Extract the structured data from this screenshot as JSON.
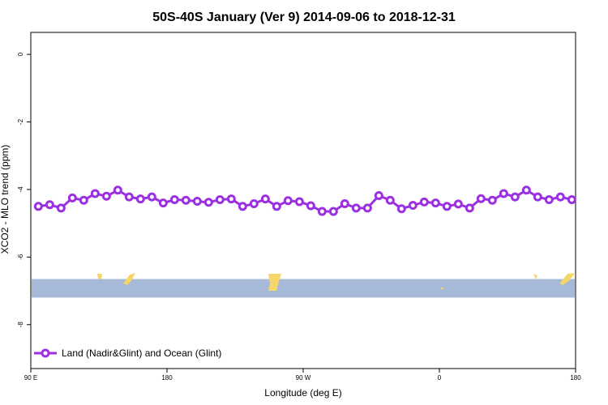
{
  "chart_data": {
    "type": "line",
    "title": "50S-40S January (Ver 9)   2014-09-06 to 2018-12-31",
    "xlabel": "Longitude (deg E)",
    "ylabel": "XCO2 - MLO trend (ppm)",
    "xlim": [
      90,
      450
    ],
    "ylim": [
      -9.3,
      0.65
    ],
    "x_ticks": [
      {
        "value": 90,
        "label": "90 E"
      },
      {
        "value": 180,
        "label": "180"
      },
      {
        "value": 270,
        "label": "90 W"
      },
      {
        "value": 360,
        "label": "0"
      },
      {
        "value": 450,
        "label": "180"
      }
    ],
    "extra_x_ticks": [
      {
        "value": 450,
        "label": "90 E",
        "show": false
      }
    ],
    "y_ticks": [
      {
        "value": 0,
        "label": "0"
      },
      {
        "value": -2,
        "label": "-2"
      },
      {
        "value": -4,
        "label": "-4"
      },
      {
        "value": -6,
        "label": "-6"
      },
      {
        "value": -8,
        "label": "-8"
      }
    ],
    "grid": false,
    "legend_position": "bottom-left",
    "series": [
      {
        "name": "Land (Nadir&Glint) and Ocean (Glint)",
        "color": "#9b30e0",
        "x": [
          95,
          102.5,
          110,
          117.5,
          125,
          132.5,
          140,
          147.5,
          155,
          162.5,
          170,
          177.5,
          185,
          192.5,
          200,
          207.5,
          215,
          222.5,
          230,
          237.5,
          245,
          252.5,
          260,
          267.5,
          275,
          282.5,
          290,
          297.5,
          305,
          312.5,
          320,
          327.5,
          335,
          342.5,
          350,
          357.5,
          365,
          372.5,
          380,
          387.5,
          395,
          402.5,
          410,
          417.5,
          425,
          432.5,
          440,
          447.5
        ],
        "y": [
          -4.5,
          -4.45,
          -4.55,
          -4.25,
          -4.32,
          -4.12,
          -4.2,
          -4.02,
          -4.22,
          -4.28,
          -4.22,
          -4.4,
          -4.3,
          -4.32,
          -4.35,
          -4.38,
          -4.3,
          -4.28,
          -4.5,
          -4.42,
          -4.28,
          -4.5,
          -4.33,
          -4.36,
          -4.48,
          -4.65,
          -4.65,
          -4.42,
          -4.55,
          -4.55,
          -4.18,
          -4.32,
          -4.57,
          -4.47,
          -4.37,
          -4.4,
          -4.5,
          -4.43,
          -4.55,
          -4.27,
          -4.32,
          -4.12,
          -4.22,
          -4.02,
          -4.22,
          -4.3,
          -4.22,
          -4.3
        ]
      }
    ],
    "ocean_band": {
      "y_top": -6.65,
      "y_bottom": -7.2,
      "color": "#a7b9d8"
    },
    "land_color": "#f5d669"
  }
}
